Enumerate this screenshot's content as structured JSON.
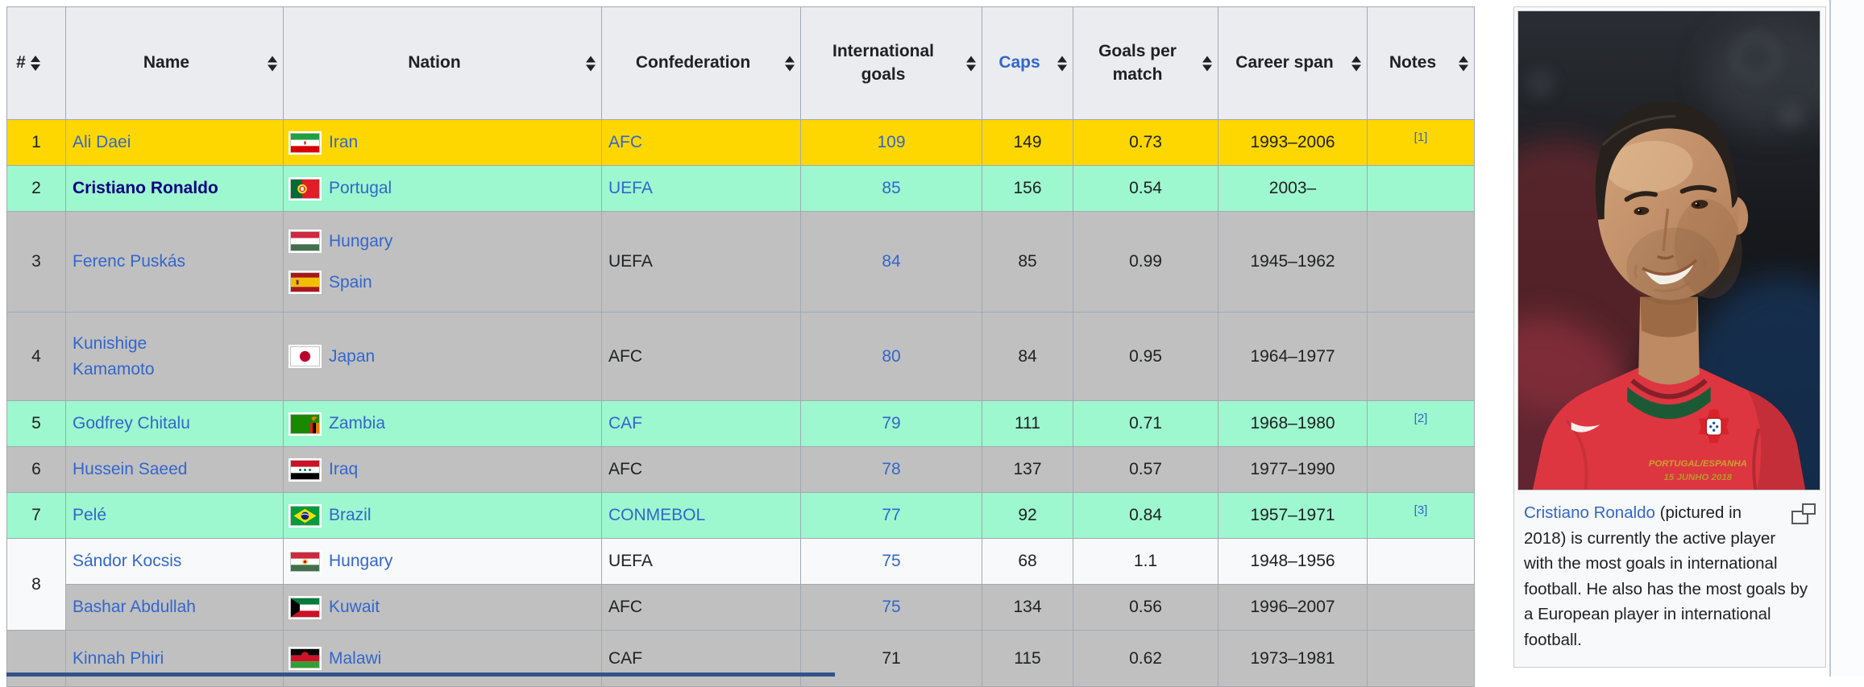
{
  "colors": {
    "row_gold": "#ffd700",
    "row_active_green": "#9df7cf",
    "row_gray": "#c0c0c0",
    "row_white": "#f8f9fa",
    "header_bg": "#eaecf0",
    "cell_border": "#a2a9b1",
    "link_blue": "#3366cc",
    "ronaldo_link_dark": "#0b0080",
    "text": "#202122",
    "bottom_strip": "#33518c",
    "thumb_bg": "#f8f9fa",
    "thumb_border": "#c8ccd1"
  },
  "table": {
    "headers": [
      {
        "label": "#",
        "sortable": true,
        "link": false,
        "narrow": true
      },
      {
        "label": "Name",
        "sortable": true,
        "link": false
      },
      {
        "label": "Nation",
        "sortable": true,
        "link": false
      },
      {
        "label": "Confederation",
        "sortable": true,
        "link": false
      },
      {
        "label": "International goals",
        "sortable": true,
        "link": false
      },
      {
        "label": "Caps",
        "sortable": true,
        "link": true
      },
      {
        "label": "Goals per match",
        "sortable": true,
        "link": false
      },
      {
        "label": "Career span",
        "sortable": true,
        "link": false
      },
      {
        "label": "Notes",
        "sortable": true,
        "link": false
      }
    ],
    "rows": [
      {
        "rank": "1",
        "name": "Ali Daei",
        "name_bold": false,
        "nations": [
          {
            "flag": "iran",
            "label": "Iran"
          }
        ],
        "confederation": "AFC",
        "confed_link": true,
        "goals": "109",
        "goals_link": true,
        "caps": "149",
        "goals_per_match": "0.73",
        "career_span": "1993–2006",
        "note": "[1]",
        "bg": "gold"
      },
      {
        "rank": "2",
        "name": "Cristiano Ronaldo",
        "name_bold": true,
        "nations": [
          {
            "flag": "portugal",
            "label": "Portugal"
          }
        ],
        "confederation": "UEFA",
        "confed_link": true,
        "goals": "85",
        "goals_link": true,
        "caps": "156",
        "goals_per_match": "0.54",
        "career_span": "2003–",
        "note": "",
        "bg": "green"
      },
      {
        "rank": "3",
        "name": "Ferenc Puskás",
        "name_bold": false,
        "nations": [
          {
            "flag": "hungary",
            "label": "Hungary"
          },
          {
            "flag": "spain",
            "label": "Spain"
          }
        ],
        "confederation": "UEFA",
        "confed_link": false,
        "goals": "84",
        "goals_link": true,
        "caps": "85",
        "goals_per_match": "0.99",
        "career_span": "1945–1962",
        "note": "",
        "bg": "gray"
      },
      {
        "rank": "4",
        "name": "Kunishige Kamamoto",
        "name_bold": false,
        "name_wrap": true,
        "nations": [
          {
            "flag": "japan",
            "label": "Japan"
          }
        ],
        "confederation": "AFC",
        "confed_link": false,
        "goals": "80",
        "goals_link": true,
        "caps": "84",
        "goals_per_match": "0.95",
        "career_span": "1964–1977",
        "note": "",
        "bg": "gray"
      },
      {
        "rank": "5",
        "name": "Godfrey Chitalu",
        "name_bold": false,
        "nations": [
          {
            "flag": "zambia",
            "label": "Zambia"
          }
        ],
        "confederation": "CAF",
        "confed_link": true,
        "goals": "79",
        "goals_link": true,
        "caps": "111",
        "goals_per_match": "0.71",
        "career_span": "1968–1980",
        "note": "[2]",
        "bg": "green"
      },
      {
        "rank": "6",
        "name": "Hussein Saeed",
        "name_bold": false,
        "nations": [
          {
            "flag": "iraq",
            "label": "Iraq"
          }
        ],
        "confederation": "AFC",
        "confed_link": false,
        "goals": "78",
        "goals_link": true,
        "caps": "137",
        "goals_per_match": "0.57",
        "career_span": "1977–1990",
        "note": "",
        "bg": "gray"
      },
      {
        "rank": "7",
        "name": "Pelé",
        "name_bold": false,
        "nations": [
          {
            "flag": "brazil",
            "label": "Brazil"
          }
        ],
        "confederation": "CONMEBOL",
        "confed_link": true,
        "goals": "77",
        "goals_link": true,
        "caps": "92",
        "goals_per_match": "0.84",
        "career_span": "1957–1971",
        "note": "[3]",
        "bg": "green"
      },
      {
        "rank": "8",
        "rank_rowspan": 2,
        "name": "Sándor Kocsis",
        "name_bold": false,
        "nations": [
          {
            "flag": "hungary1949",
            "label": "Hungary"
          }
        ],
        "confederation": "UEFA",
        "confed_link": false,
        "goals": "75",
        "goals_link": true,
        "caps": "68",
        "goals_per_match": "1.1",
        "career_span": "1948–1956",
        "note": "",
        "bg": "white"
      },
      {
        "rank": null,
        "name": "Bashar Abdullah",
        "name_bold": false,
        "nations": [
          {
            "flag": "kuwait",
            "label": "Kuwait"
          }
        ],
        "confederation": "AFC",
        "confed_link": false,
        "goals": "75",
        "goals_link": true,
        "caps": "134",
        "goals_per_match": "0.56",
        "career_span": "1996–2007",
        "note": "",
        "bg": "gray"
      },
      {
        "rank": "",
        "name": "Kinnah Phiri",
        "name_bold": false,
        "nations": [
          {
            "flag": "malawi",
            "label": "Malawi"
          }
        ],
        "confederation": "CAF",
        "confed_link": false,
        "goals": "71",
        "goals_link": false,
        "caps": "115",
        "goals_per_match": "0.62",
        "career_span": "1973–1981",
        "note": "",
        "bg": "gray"
      }
    ]
  },
  "sidebar": {
    "caption_link_text": "Cristiano Ronaldo",
    "caption_text_after_link": " (pictured in 2018) is currently the active player with the most goals in international football. He also has the most goals by a European player in international football.",
    "jersey_text_line1": "PORTUGAL/ESPANHA",
    "jersey_text_line2": "15 JUNHO 2018"
  }
}
